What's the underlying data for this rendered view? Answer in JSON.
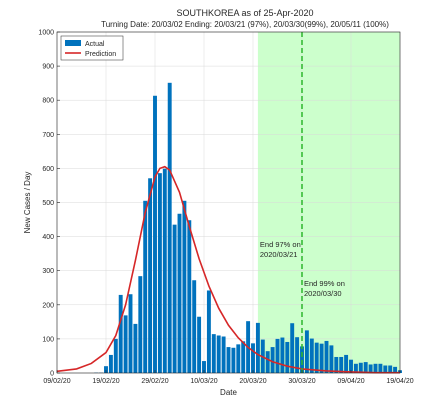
{
  "chart_data": {
    "type": "bar",
    "title": "SOUTHKOREA as of 25-Apr-2020",
    "subtitle": "Turning Date: 20/03/02  Ending: 20/03/21 (97%), 20/03/30(99%), 20/05/11 (100%)",
    "xlabel": "Date",
    "ylabel": "New Cases / Day",
    "x_range": [
      "2020-02-09",
      "2020-04-19"
    ],
    "ylim": [
      0,
      1000
    ],
    "y_ticks": [
      0,
      100,
      200,
      300,
      400,
      500,
      600,
      700,
      800,
      900,
      1000
    ],
    "x_ticks": [
      {
        "date": "2020-02-09",
        "label": "09/02/20"
      },
      {
        "date": "2020-02-19",
        "label": "19/02/20"
      },
      {
        "date": "2020-02-29",
        "label": "29/02/20"
      },
      {
        "date": "2020-03-10",
        "label": "10/03/20"
      },
      {
        "date": "2020-03-20",
        "label": "20/03/20"
      },
      {
        "date": "2020-03-30",
        "label": "30/03/20"
      },
      {
        "date": "2020-04-09",
        "label": "09/04/20"
      },
      {
        "date": "2020-04-19",
        "label": "19/04/20"
      }
    ],
    "grid": true,
    "legend_position": "top-left",
    "shaded_region": {
      "from": "2020-03-21",
      "to": "2020-04-19",
      "color": "#ccffcc"
    },
    "vertical_line": {
      "date": "2020-03-30",
      "color": "#2db52d",
      "style": "dashed"
    },
    "annotations": [
      {
        "lines": [
          "End 97% on",
          "2020/03/21"
        ],
        "date": "2020-03-21",
        "y": 370
      },
      {
        "lines": [
          "End 99% on",
          "2020/03/30"
        ],
        "date": "2020-03-30",
        "y": 255
      }
    ],
    "series": [
      {
        "name": "Actual",
        "type": "bar",
        "color": "#0072bd",
        "points": [
          [
            "2020-02-16",
            0
          ],
          [
            "2020-02-17",
            1
          ],
          [
            "2020-02-18",
            1
          ],
          [
            "2020-02-19",
            20
          ],
          [
            "2020-02-20",
            53
          ],
          [
            "2020-02-21",
            100
          ],
          [
            "2020-02-22",
            229
          ],
          [
            "2020-02-23",
            169
          ],
          [
            "2020-02-24",
            231
          ],
          [
            "2020-02-25",
            144
          ],
          [
            "2020-02-26",
            284
          ],
          [
            "2020-02-27",
            505
          ],
          [
            "2020-02-28",
            571
          ],
          [
            "2020-02-29",
            813
          ],
          [
            "2020-03-01",
            586
          ],
          [
            "2020-03-02",
            599
          ],
          [
            "2020-03-03",
            851
          ],
          [
            "2020-03-04",
            435
          ],
          [
            "2020-03-05",
            467
          ],
          [
            "2020-03-06",
            505
          ],
          [
            "2020-03-07",
            448
          ],
          [
            "2020-03-08",
            272
          ],
          [
            "2020-03-09",
            165
          ],
          [
            "2020-03-10",
            35
          ],
          [
            "2020-03-11",
            242
          ],
          [
            "2020-03-12",
            114
          ],
          [
            "2020-03-13",
            110
          ],
          [
            "2020-03-14",
            107
          ],
          [
            "2020-03-15",
            76
          ],
          [
            "2020-03-16",
            74
          ],
          [
            "2020-03-17",
            84
          ],
          [
            "2020-03-18",
            93
          ],
          [
            "2020-03-19",
            152
          ],
          [
            "2020-03-20",
            87
          ],
          [
            "2020-03-21",
            147
          ],
          [
            "2020-03-22",
            98
          ],
          [
            "2020-03-23",
            64
          ],
          [
            "2020-03-24",
            76
          ],
          [
            "2020-03-25",
            100
          ],
          [
            "2020-03-26",
            104
          ],
          [
            "2020-03-27",
            91
          ],
          [
            "2020-03-28",
            146
          ],
          [
            "2020-03-29",
            105
          ],
          [
            "2020-03-30",
            78
          ],
          [
            "2020-03-31",
            125
          ],
          [
            "2020-04-01",
            101
          ],
          [
            "2020-04-02",
            89
          ],
          [
            "2020-04-03",
            86
          ],
          [
            "2020-04-04",
            94
          ],
          [
            "2020-04-05",
            81
          ],
          [
            "2020-04-06",
            47
          ],
          [
            "2020-04-07",
            47
          ],
          [
            "2020-04-08",
            53
          ],
          [
            "2020-04-09",
            39
          ],
          [
            "2020-04-10",
            27
          ],
          [
            "2020-04-11",
            30
          ],
          [
            "2020-04-12",
            32
          ],
          [
            "2020-04-13",
            25
          ],
          [
            "2020-04-14",
            27
          ],
          [
            "2020-04-15",
            27
          ],
          [
            "2020-04-16",
            22
          ],
          [
            "2020-04-17",
            22
          ],
          [
            "2020-04-18",
            18
          ],
          [
            "2020-04-19",
            8
          ]
        ]
      },
      {
        "name": "Prediction",
        "type": "line",
        "color": "#d62728",
        "points": [
          [
            "2020-02-09",
            5
          ],
          [
            "2020-02-13",
            12
          ],
          [
            "2020-02-16",
            28
          ],
          [
            "2020-02-19",
            60
          ],
          [
            "2020-02-21",
            110
          ],
          [
            "2020-02-23",
            200
          ],
          [
            "2020-02-25",
            330
          ],
          [
            "2020-02-27",
            470
          ],
          [
            "2020-02-29",
            575
          ],
          [
            "2020-03-01",
            600
          ],
          [
            "2020-03-02",
            605
          ],
          [
            "2020-03-03",
            595
          ],
          [
            "2020-03-05",
            530
          ],
          [
            "2020-03-07",
            430
          ],
          [
            "2020-03-09",
            335
          ],
          [
            "2020-03-11",
            255
          ],
          [
            "2020-03-13",
            190
          ],
          [
            "2020-03-15",
            140
          ],
          [
            "2020-03-17",
            103
          ],
          [
            "2020-03-19",
            75
          ],
          [
            "2020-03-21",
            54
          ],
          [
            "2020-03-24",
            33
          ],
          [
            "2020-03-27",
            20
          ],
          [
            "2020-03-30",
            12
          ],
          [
            "2020-04-04",
            6
          ],
          [
            "2020-04-09",
            3
          ],
          [
            "2020-04-14",
            1
          ],
          [
            "2020-04-19",
            1
          ]
        ]
      }
    ]
  }
}
